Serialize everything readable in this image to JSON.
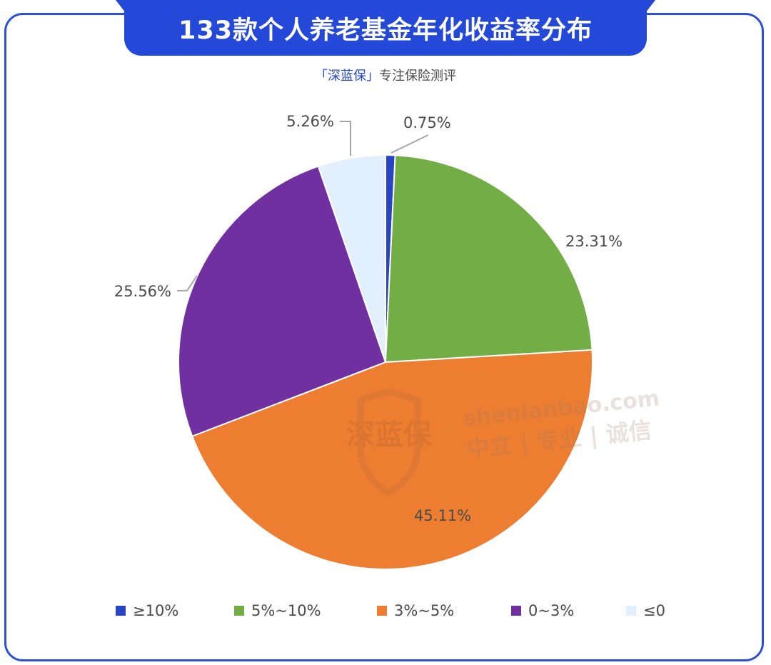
{
  "header": {
    "title": "133款个人养老基金年化收益率分布",
    "subtitle_brand": "「深蓝保」",
    "subtitle_rest": "专注保险测评"
  },
  "watermark": {
    "logo_text": "深蓝保",
    "url": "shenlanbao.com",
    "tagline": "中立 | 专业 | 诚信"
  },
  "chart_data": {
    "type": "pie",
    "title": "133款个人养老基金年化收益率分布",
    "legend_position": "bottom",
    "slices": [
      {
        "name": "≥10%",
        "value": 0.75,
        "label": "0.75%",
        "color": "#2a45c4"
      },
      {
        "name": "5%~10%",
        "value": 23.31,
        "label": "23.31%",
        "color": "#73ad45"
      },
      {
        "name": "3%~5%",
        "value": 45.11,
        "label": "45.11%",
        "color": "#ed7d31"
      },
      {
        "name": "0~3%",
        "value": 25.56,
        "label": "25.56%",
        "color": "#70309f"
      },
      {
        "name": "≤0",
        "value": 5.26,
        "label": "5.26%",
        "color": "#e2efff"
      }
    ]
  }
}
